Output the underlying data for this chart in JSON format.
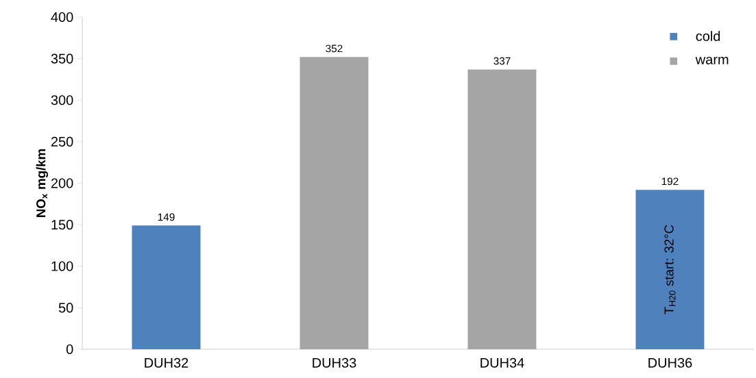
{
  "chart_data": {
    "type": "bar",
    "ylabel": "NO$_{x}$ mg/km",
    "categories": [
      "DUH32",
      "DUH33",
      "DUH34",
      "DUH36"
    ],
    "series": [
      {
        "name": "cold",
        "color": "#4f81bd",
        "values": [
          149,
          null,
          null,
          192
        ]
      },
      {
        "name": "warm",
        "color": "#a5a5a5",
        "values": [
          null,
          352,
          337,
          null
        ]
      }
    ],
    "ylim": [
      0,
      400
    ],
    "yticks": [
      0,
      50,
      100,
      150,
      200,
      250,
      300,
      350,
      400
    ],
    "data_labels": true,
    "legend": "top right",
    "annotations": [
      "T$_{H20}$ start: 32°C"
    ]
  }
}
